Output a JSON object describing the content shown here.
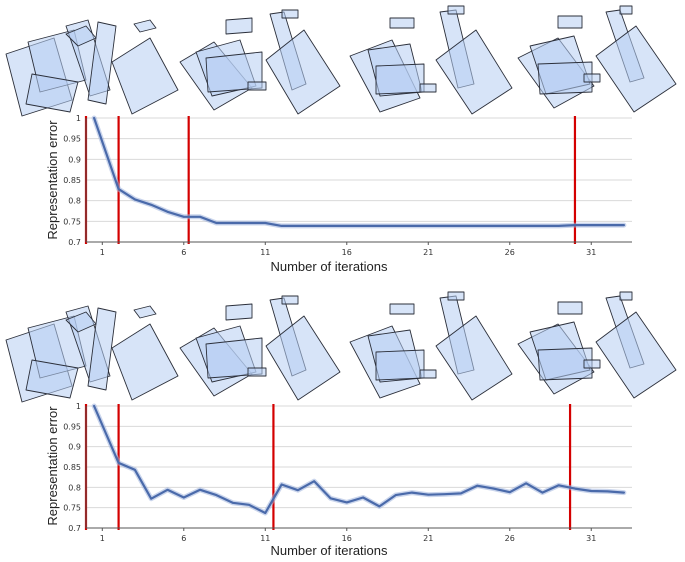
{
  "colors": {
    "line": "#4a6aaa",
    "line_glow": "#9fb3dd",
    "marker": "#d40000",
    "grid": "#d9d9d9",
    "axis": "#555555",
    "box_fill": "#b7cdf2",
    "box_stroke": "#2b2f3a"
  },
  "panel_icons": [
    "box-arrangement-icon",
    "box-arrangement-icon",
    "box-arrangement-icon",
    "box-arrangement-icon"
  ],
  "chart_data": [
    {
      "type": "line",
      "xlabel": "Number of iterations",
      "ylabel": "Representation error",
      "xlim": [
        0,
        33.5
      ],
      "ylim": [
        0.7,
        1.0
      ],
      "xticks": [
        1,
        6,
        11,
        16,
        21,
        26,
        31
      ],
      "xtick_labels": [
        "1",
        "6",
        "11",
        "16",
        "21",
        "26",
        "31"
      ],
      "yticks": [
        0.7,
        0.75,
        0.8,
        0.85,
        0.9,
        0.95,
        1.0
      ],
      "ytick_labels": [
        "0.7",
        "0.75",
        "0.8",
        "0.85",
        "0.9",
        "0.95",
        "1"
      ],
      "grid": true,
      "series": [
        {
          "x": [
            0.5,
            2,
            3,
            4,
            5,
            6,
            7,
            8,
            9,
            10,
            11,
            12,
            13,
            14,
            15,
            16,
            17,
            18,
            19,
            20,
            21,
            22,
            23,
            24,
            25,
            26,
            27,
            28,
            29,
            30,
            31,
            32,
            33
          ],
          "values": [
            1.0,
            0.828,
            0.803,
            0.79,
            0.773,
            0.761,
            0.761,
            0.746,
            0.746,
            0.746,
            0.746,
            0.739,
            0.739,
            0.739,
            0.739,
            0.739,
            0.739,
            0.739,
            0.739,
            0.739,
            0.739,
            0.739,
            0.739,
            0.739,
            0.739,
            0.739,
            0.739,
            0.739,
            0.739,
            0.741,
            0.741,
            0.741,
            0.741
          ]
        }
      ],
      "markers": [
        0,
        2,
        6.3,
        30
      ]
    },
    {
      "type": "line",
      "xlabel": "Number of iterations",
      "ylabel": "Representation error",
      "xlim": [
        0,
        33.5
      ],
      "ylim": [
        0.7,
        1.0
      ],
      "xticks": [
        1,
        6,
        11,
        16,
        21,
        26,
        31
      ],
      "xtick_labels": [
        "1",
        "6",
        "11",
        "16",
        "21",
        "26",
        "31"
      ],
      "yticks": [
        0.7,
        0.75,
        0.8,
        0.85,
        0.9,
        0.95,
        1.0
      ],
      "ytick_labels": [
        "0.7",
        "0.75",
        "0.8",
        "0.85",
        "0.9",
        "0.95",
        "1"
      ],
      "grid": true,
      "series": [
        {
          "x": [
            0.5,
            2,
            3,
            4,
            5,
            6,
            7,
            8,
            9,
            10,
            11,
            12,
            13,
            14,
            15,
            16,
            17,
            18,
            19,
            20,
            21,
            22,
            23,
            24,
            25,
            26,
            27,
            28,
            29,
            30,
            31,
            32,
            33
          ],
          "values": [
            1.0,
            0.86,
            0.843,
            0.772,
            0.794,
            0.775,
            0.794,
            0.781,
            0.762,
            0.757,
            0.737,
            0.807,
            0.793,
            0.815,
            0.773,
            0.763,
            0.775,
            0.753,
            0.781,
            0.787,
            0.782,
            0.783,
            0.785,
            0.804,
            0.797,
            0.788,
            0.81,
            0.787,
            0.805,
            0.797,
            0.791,
            0.79,
            0.787
          ]
        }
      ],
      "markers": [
        0,
        2,
        11.5,
        29.7
      ]
    }
  ]
}
